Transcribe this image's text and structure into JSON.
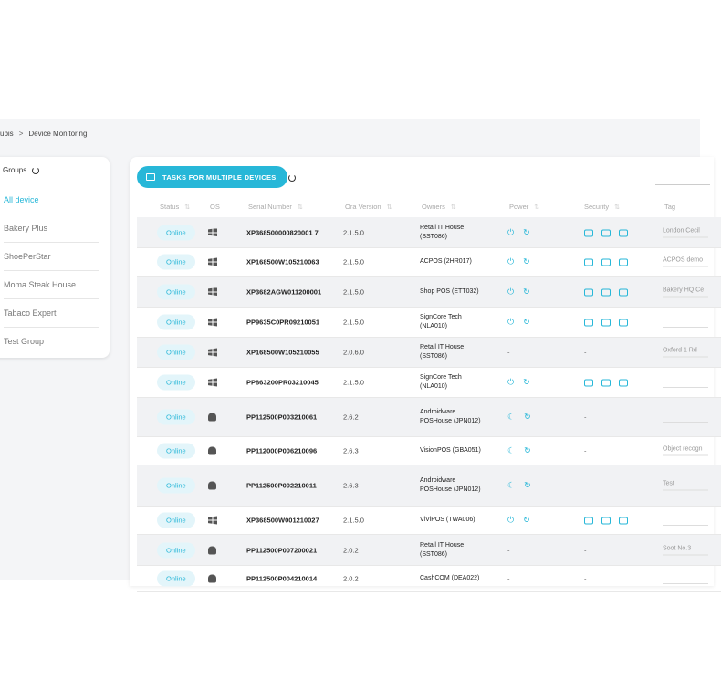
{
  "breadcrumb": {
    "parent": "ubis",
    "separator": ">",
    "current": "Device Monitoring"
  },
  "groups": {
    "title": "Groups",
    "items": [
      "All device",
      "Bakery Plus",
      "ShoePerStar",
      "Moma Steak House",
      "Tabaco Expert",
      "Test Group"
    ]
  },
  "toolbar": {
    "tasks_label": "TASKS FOR MULTIPLE DEVICES"
  },
  "table": {
    "columns": [
      "Status",
      "OS",
      "Serial Number",
      "Ora Version",
      "Owners",
      "Power",
      "Security",
      "Tag"
    ],
    "rows": [
      {
        "status": "Online",
        "os": "windows",
        "serial": "XP368500000820001 7",
        "version": "2.1.5.0",
        "owner1": "Retail IT House",
        "owner2": "(SST086)",
        "power": true,
        "security": true,
        "tag": "London Cecil"
      },
      {
        "status": "Online",
        "os": "windows",
        "serial": "XP168500W105210063",
        "version": "2.1.5.0",
        "owner1": "ACPOS (2HR017)",
        "owner2": "",
        "power": true,
        "security": true,
        "tag": "ACPOS demo"
      },
      {
        "status": "Online",
        "os": "windows",
        "serial": "XP3682AGW011200001",
        "version": "2.1.5.0",
        "owner1": "Shop POS (ETT032)",
        "owner2": "",
        "power": true,
        "security": true,
        "tag": "Bakery HQ Ce"
      },
      {
        "status": "Online",
        "os": "windows",
        "serial": "PP9635C0PR09210051",
        "version": "2.1.5.0",
        "owner1": "SignCore Tech",
        "owner2": "(NLA010)",
        "power": true,
        "security": true,
        "tag": ""
      },
      {
        "status": "Online",
        "os": "windows",
        "serial": "XP168500W105210055",
        "version": "2.0.6.0",
        "owner1": "Retail IT House",
        "owner2": "(SST086)",
        "power": false,
        "security": false,
        "tag": "Oxford 1 Rd"
      },
      {
        "status": "Online",
        "os": "windows",
        "serial": "PP863200PR03210045",
        "version": "2.1.5.0",
        "owner1": "SignCore Tech",
        "owner2": "(NLA010)",
        "power": true,
        "security": true,
        "tag": ""
      },
      {
        "status": "Online",
        "os": "android",
        "serial": "PP112500P003210061",
        "version": "2.6.2",
        "owner1": "Androidware",
        "owner2": "POSHouse (JPN012)",
        "power": "android",
        "security": false,
        "tag": ""
      },
      {
        "status": "Online",
        "os": "android",
        "serial": "PP112000P006210096",
        "version": "2.6.3",
        "owner1": "VisionPOS (GBA051)",
        "owner2": "",
        "power": "android",
        "security": false,
        "tag": "Object recogn"
      },
      {
        "status": "Online",
        "os": "android",
        "serial": "PP112500P002210011",
        "version": "2.6.3",
        "owner1": "Androidware",
        "owner2": "POSHouse (JPN012)",
        "power": "android",
        "security": false,
        "tag": "Test"
      },
      {
        "status": "Online",
        "os": "windows",
        "serial": "XP368500W001210027",
        "version": "2.1.5.0",
        "owner1": "ViViPOS (TWA006)",
        "owner2": "",
        "power": true,
        "security": true,
        "tag": ""
      },
      {
        "status": "Online",
        "os": "android",
        "serial": "PP112500P007200021",
        "version": "2.0.2",
        "owner1": "Retail IT House",
        "owner2": "(SST086)",
        "power": false,
        "security": false,
        "tag": "Soot No.3"
      },
      {
        "status": "Online",
        "os": "android",
        "serial": "PP112500P004210014",
        "version": "2.0.2",
        "owner1": "CashCOM (DEA022)",
        "owner2": "",
        "power": false,
        "security": false,
        "tag": ""
      }
    ]
  },
  "dash": "-",
  "colors": {
    "accent": "#27b7d8",
    "badge_bg": "#e3f5fa"
  }
}
